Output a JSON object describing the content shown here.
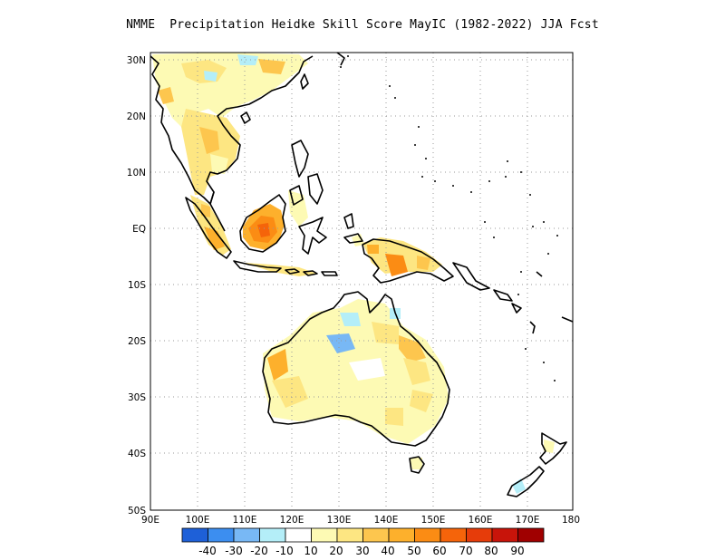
{
  "title": "NMME  Precipitation Heidke Skill Score MayIC (1982-2022) JJA Fcst",
  "map": {
    "lon_ticks": [
      "90E",
      "100E",
      "110E",
      "120E",
      "130E",
      "140E",
      "150E",
      "160E",
      "170E",
      "180"
    ],
    "lat_ticks": [
      "30N",
      "20N",
      "10N",
      "EQ",
      "10S",
      "20S",
      "30S",
      "40S",
      "50S"
    ],
    "lon_range": [
      90,
      180
    ],
    "lat_range": [
      -50,
      31
    ],
    "grid": "dotted"
  },
  "colorbar": {
    "colors": [
      "#1e60d8",
      "#3c8ef0",
      "#78b8f5",
      "#b4eef8",
      "#ffffff",
      "#fdfab4",
      "#fde682",
      "#fdc64e",
      "#fdb02c",
      "#fb8c14",
      "#f5640a",
      "#e63c0a",
      "#c8140a",
      "#a00000"
    ],
    "labels": [
      "-40",
      "-30",
      "-20",
      "-10",
      "10",
      "20",
      "30",
      "40",
      "50",
      "60",
      "70",
      "80",
      "90"
    ]
  }
}
